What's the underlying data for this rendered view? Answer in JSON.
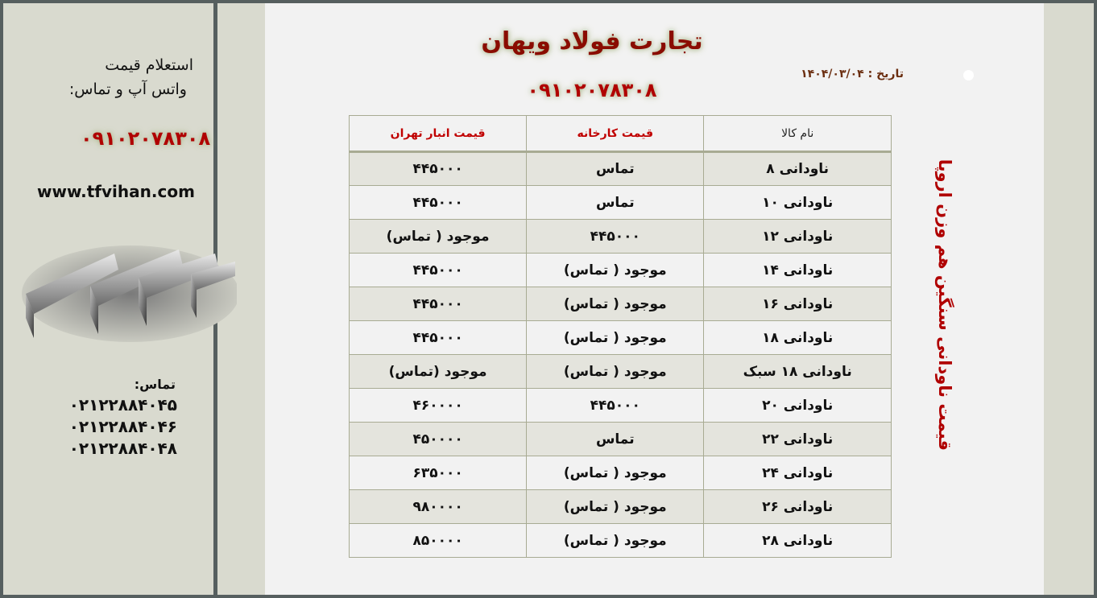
{
  "header": {
    "title": "تجارت فولاد ویهان",
    "phone": "۰۹۱۰۲۰۷۸۳۰۸",
    "date_label": "تاریخ :",
    "date": "۱۴۰۴/۰۳/۰۴"
  },
  "sidebar": {
    "inquiry_line1": "استعلام قیمت",
    "inquiry_line2": "واتس آپ و تماس:",
    "phone": "۰۹۱۰۲۰۷۸۳۰۸",
    "website": "www.tfvihan.com",
    "contact_label": "تماس:",
    "phones": [
      "۰۲۱۲۲۸۸۴۰۴۵",
      "۰۲۱۲۲۸۸۴۰۴۶",
      "۰۲۱۲۲۸۸۴۰۴۸"
    ]
  },
  "vertical_title": "قیمت ناودانی سنگین هم وزن اروپا",
  "table": {
    "headers": [
      "نام کالا",
      "قیمت کارخانه",
      "قیمت انبار تهران"
    ],
    "rows": [
      [
        "ناودانی ۸",
        "تماس",
        "۴۴۵۰۰۰"
      ],
      [
        "ناودانی ۱۰",
        "تماس",
        "۴۴۵۰۰۰"
      ],
      [
        "ناودانی ۱۲",
        "۴۴۵۰۰۰",
        "موجود ( تماس)"
      ],
      [
        "ناودانی ۱۴",
        "موجود ( تماس)",
        "۴۴۵۰۰۰"
      ],
      [
        "ناودانی ۱۶",
        "موجود ( تماس)",
        "۴۴۵۰۰۰"
      ],
      [
        "ناودانی ۱۸",
        "موجود ( تماس)",
        "۴۴۵۰۰۰"
      ],
      [
        "ناودانی ۱۸ سبک",
        "موجود ( تماس)",
        "موجود (تماس)"
      ],
      [
        "ناودانی ۲۰",
        "۴۴۵۰۰۰",
        "۴۶۰۰۰۰"
      ],
      [
        "ناودانی ۲۲",
        "تماس",
        "۴۵۰۰۰۰"
      ],
      [
        "ناودانی ۲۴",
        "موجود ( تماس)",
        "۶۳۵۰۰۰"
      ],
      [
        "ناودانی ۲۶",
        "موجود ( تماس)",
        "۹۸۰۰۰۰"
      ],
      [
        "ناودانی ۲۸",
        "موجود ( تماس)",
        "۸۵۰۰۰۰"
      ]
    ]
  },
  "colors": {
    "accent_red": "#b00000",
    "frame": "#565f5f",
    "panel": "#d9dacf",
    "content": "#f2f2f2"
  }
}
